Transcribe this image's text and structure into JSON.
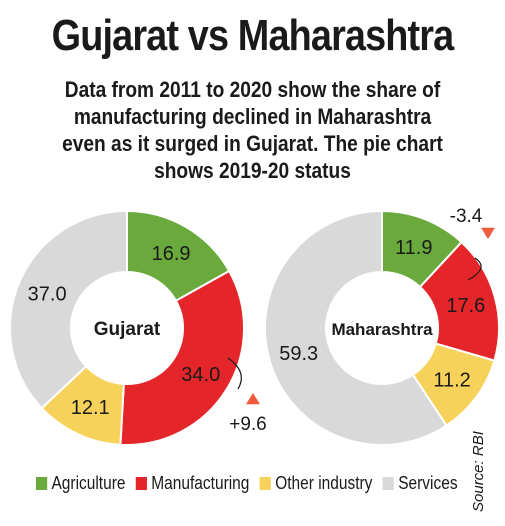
{
  "title": "Gujarat vs Maharashtra",
  "subtitle": "Data from 2011 to 2020 show the share of manufacturing declined in Maharashtra even as it surged in Gujarat. The pie chart shows 2019-20 status",
  "source": "Source: RBI",
  "colors": {
    "Agriculture": "#6aa93c",
    "Manufacturing": "#e4262a",
    "Other industry": "#f7d25b",
    "Services": "#d9d9d9",
    "arrow_up": "#f05a3c",
    "arrow_down": "#f05a3c"
  },
  "chart_data": [
    {
      "type": "pie",
      "title": "Gujarat",
      "categories": [
        "Agriculture",
        "Manufacturing",
        "Other industry",
        "Services"
      ],
      "values": [
        16.9,
        34.0,
        12.1,
        37.0
      ],
      "labels": [
        "16.9",
        "34.0",
        "12.1",
        "37.0"
      ],
      "annotation": {
        "category": "Manufacturing",
        "change": "+9.6",
        "direction": "up"
      }
    },
    {
      "type": "pie",
      "title": "Maharashtra",
      "categories": [
        "Agriculture",
        "Manufacturing",
        "Other industry",
        "Services"
      ],
      "values": [
        11.9,
        17.6,
        11.2,
        59.3
      ],
      "labels": [
        "11.9",
        "17.6",
        "11.2",
        "59.3"
      ],
      "annotation": {
        "category": "Manufacturing",
        "change": "-3.4",
        "direction": "down"
      }
    }
  ],
  "legend": [
    {
      "label": "Agriculture",
      "color": "#6aa93c"
    },
    {
      "label": "Manufacturing",
      "color": "#e4262a"
    },
    {
      "label": "Other industry",
      "color": "#f7d25b"
    },
    {
      "label": "Services",
      "color": "#d9d9d9"
    }
  ]
}
